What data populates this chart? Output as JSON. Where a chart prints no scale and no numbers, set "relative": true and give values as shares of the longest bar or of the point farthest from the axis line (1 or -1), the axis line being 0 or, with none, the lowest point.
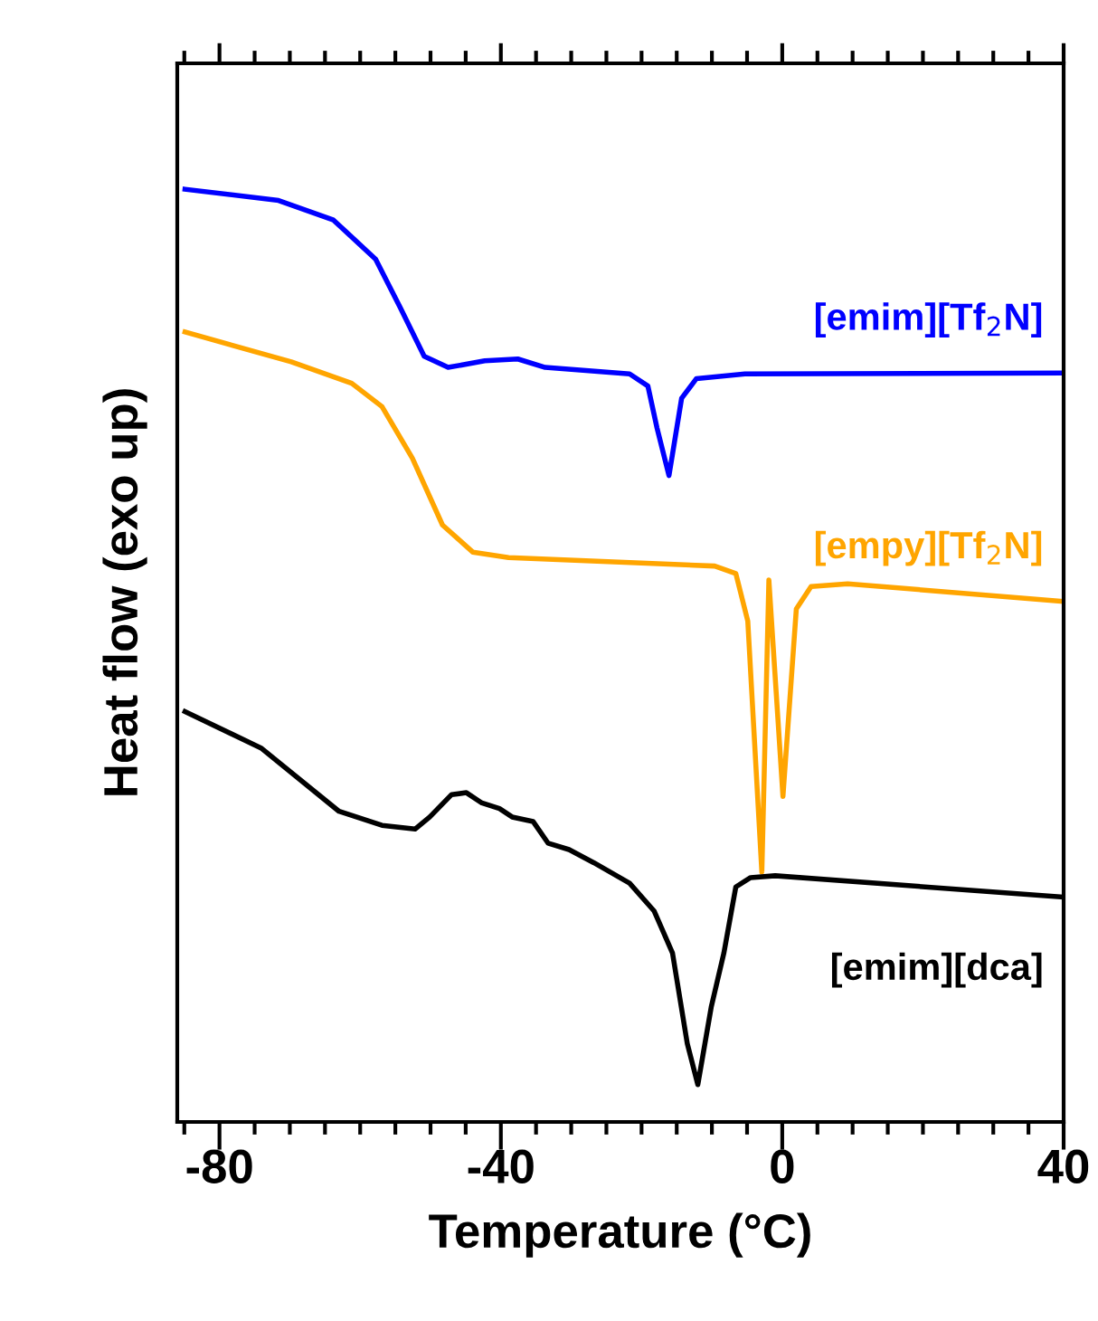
{
  "chart_data": {
    "type": "line",
    "xlabel": "Temperature (°C)",
    "ylabel": "Heat flow (exo up)",
    "relative": true,
    "xlim": [
      -86,
      40
    ],
    "xticks": [
      {
        "value": -85,
        "label": null
      },
      {
        "value": -80,
        "label": "-80"
      },
      {
        "value": -75,
        "label": null
      },
      {
        "value": -70,
        "label": null
      },
      {
        "value": -65,
        "label": null
      },
      {
        "value": -60,
        "label": null
      },
      {
        "value": -55,
        "label": null
      },
      {
        "value": -50,
        "label": null
      },
      {
        "value": -45,
        "label": null
      },
      {
        "value": -40,
        "label": "-40"
      },
      {
        "value": -35,
        "label": null
      },
      {
        "value": -30,
        "label": null
      },
      {
        "value": -25,
        "label": null
      },
      {
        "value": -20,
        "label": null
      },
      {
        "value": -15,
        "label": null
      },
      {
        "value": -10,
        "label": null
      },
      {
        "value": -5,
        "label": null
      },
      {
        "value": 0,
        "label": "0"
      },
      {
        "value": 5,
        "label": null
      },
      {
        "value": 10,
        "label": null
      },
      {
        "value": 15,
        "label": null
      },
      {
        "value": 20,
        "label": null
      },
      {
        "value": 25,
        "label": null
      },
      {
        "value": 30,
        "label": null
      },
      {
        "value": 35,
        "label": null
      },
      {
        "value": 40,
        "label": "40"
      }
    ],
    "tick_labels": "x",
    "grid": false,
    "legend": false,
    "marker": "none",
    "line_style": "solid",
    "series": [
      {
        "name": "[emim][Tf$_{2}$N]",
        "color": "#0000ff",
        "x": [
          -84.9,
          -71.6,
          -63.8,
          -57.8,
          -54.3,
          -50.9,
          -47.5,
          -42.3,
          -37.6,
          -33.7,
          -21.7,
          -19.1,
          -17.8,
          -16.1,
          -14.3,
          -12.2,
          -5.3,
          40
        ],
        "values": [
          1.0,
          0.988,
          0.967,
          0.925,
          0.873,
          0.821,
          0.809,
          0.816,
          0.818,
          0.809,
          0.802,
          0.789,
          0.744,
          0.693,
          0.776,
          0.797,
          0.802,
          0.803
        ]
      },
      {
        "name": "[empy][Tf$_{2}$N]",
        "color": "#ffa500",
        "x": [
          -84.9,
          -69.8,
          -61.2,
          -56.9,
          -52.6,
          -48.3,
          -44.0,
          -38.9,
          -9.6,
          -6.6,
          -4.9,
          -2.9,
          -1.9,
          0.1,
          2.0,
          4.1,
          9.3,
          40
        ],
        "values": [
          0.847,
          0.815,
          0.792,
          0.767,
          0.712,
          0.64,
          0.611,
          0.605,
          0.596,
          0.588,
          0.537,
          0.268,
          0.581,
          0.349,
          0.55,
          0.574,
          0.577,
          0.558
        ]
      },
      {
        "name": "[emim][dca]",
        "color": "#000000",
        "x": [
          -84.9,
          -74.1,
          -63.0,
          -56.9,
          -52.2,
          -50.1,
          -47.0,
          -44.9,
          -42.7,
          -40.2,
          -38.4,
          -35.4,
          -33.3,
          -30.3,
          -26.8,
          -21.7,
          -18.2,
          -15.6,
          -13.5,
          -12.0,
          -10.1,
          -8.3,
          -6.6,
          -4.5,
          -1.0,
          40
        ],
        "values": [
          0.44,
          0.401,
          0.333,
          0.318,
          0.314,
          0.327,
          0.351,
          0.353,
          0.342,
          0.336,
          0.327,
          0.322,
          0.299,
          0.292,
          0.278,
          0.256,
          0.226,
          0.181,
          0.084,
          0.04,
          0.123,
          0.181,
          0.252,
          0.262,
          0.264,
          0.241
        ]
      }
    ]
  }
}
